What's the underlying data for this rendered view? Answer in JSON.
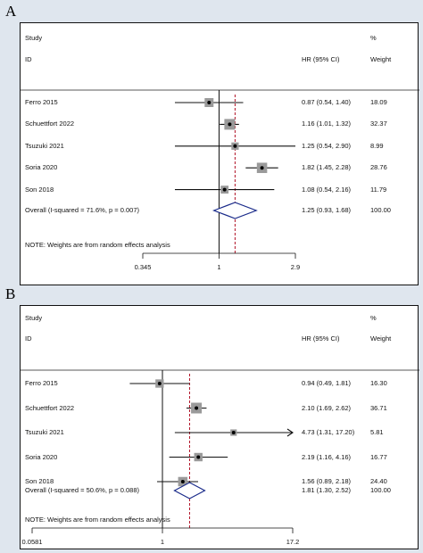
{
  "colors": {
    "background": "#dfe6ee",
    "diamond": "#1a2b8a",
    "reference_line": "#b11226",
    "box": "#9a9a9a"
  },
  "panels": [
    {
      "letter": "A",
      "headers": {
        "study": "Study",
        "id": "ID",
        "hr": "HR (95% CI)",
        "pct": "%",
        "weight": "Weight"
      },
      "note": "NOTE: Weights are from random effects analysis",
      "ticks": [
        "0.345",
        "1",
        "2.9"
      ]
    },
    {
      "letter": "B",
      "headers": {
        "study": "Study",
        "id": "ID",
        "hr": "HR (95% CI)",
        "pct": "%",
        "weight": "Weight"
      },
      "note": "NOTE: Weights are from random effects analysis",
      "ticks": [
        "0.0581",
        "1",
        "17.2"
      ]
    }
  ],
  "chart_data": [
    {
      "type": "forest",
      "x_scale": "log",
      "xlim": [
        0.345,
        2.9
      ],
      "xticks": [
        0.345,
        1,
        2.9
      ],
      "null_line": 1,
      "studies": [
        {
          "label": "Ferro 2015",
          "hr": 0.87,
          "lo": 0.54,
          "hi": 1.4,
          "ci_text": "0.87 (0.54, 1.40)",
          "weight": "18.09"
        },
        {
          "label": "Schuettfort 2022",
          "hr": 1.16,
          "lo": 1.01,
          "hi": 1.32,
          "ci_text": "1.16 (1.01, 1.32)",
          "weight": "32.37"
        },
        {
          "label": "Tsuzuki 2021",
          "hr": 1.25,
          "lo": 0.54,
          "hi": 2.9,
          "ci_text": "1.25 (0.54, 2.90)",
          "weight": "8.99"
        },
        {
          "label": "Soria 2020",
          "hr": 1.82,
          "lo": 1.45,
          "hi": 2.28,
          "ci_text": "1.82 (1.45, 2.28)",
          "weight": "28.76"
        },
        {
          "label": "Son 2018",
          "hr": 1.08,
          "lo": 0.54,
          "hi": 2.16,
          "ci_text": "1.08 (0.54, 2.16)",
          "weight": "11.79"
        }
      ],
      "overall": {
        "label": "Overall  (I-squared = 71.6%, p = 0.007)",
        "hr": 1.25,
        "lo": 0.93,
        "hi": 1.68,
        "ci_text": "1.25 (0.93, 1.68)",
        "weight": "100.00"
      }
    },
    {
      "type": "forest",
      "x_scale": "log",
      "xlim": [
        0.0581,
        17.2
      ],
      "xticks": [
        0.0581,
        1,
        17.2
      ],
      "null_line": 1,
      "studies": [
        {
          "label": "Ferro 2015",
          "hr": 0.94,
          "lo": 0.49,
          "hi": 1.81,
          "ci_text": "0.94 (0.49, 1.81)",
          "weight": "16.30"
        },
        {
          "label": "Schuettfort 2022",
          "hr": 2.1,
          "lo": 1.69,
          "hi": 2.62,
          "ci_text": "2.10 (1.69, 2.62)",
          "weight": "36.71"
        },
        {
          "label": "Tsuzuki 2021",
          "hr": 4.73,
          "lo": 1.31,
          "hi": 17.2,
          "ci_text": "4.73 (1.31, 17.20)",
          "weight": "5.81",
          "arrow": true
        },
        {
          "label": "Soria 2020",
          "hr": 2.19,
          "lo": 1.16,
          "hi": 4.16,
          "ci_text": "2.19 (1.16, 4.16)",
          "weight": "16.77"
        },
        {
          "label": "Son 2018",
          "hr": 1.56,
          "lo": 0.89,
          "hi": 2.18,
          "ci_text": "1.56 (0.89, 2.18)",
          "weight": "24.40"
        }
      ],
      "overall": {
        "label": "Overall  (I-squared = 50.6%, p = 0.088)",
        "hr": 1.81,
        "lo": 1.3,
        "hi": 2.52,
        "ci_text": "1.81 (1.30, 2.52)",
        "weight": "100.00"
      }
    }
  ]
}
